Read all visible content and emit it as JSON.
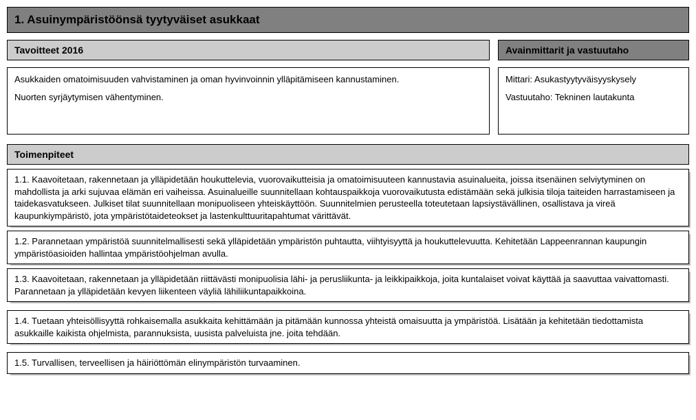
{
  "mainHeader": "1. Asuinympäristöönsä tyytyväiset asukkaat",
  "left": {
    "header": "Tavoitteet 2016",
    "body": [
      "Asukkaiden omatoimisuuden vahvistaminen ja oman hyvinvoinnin ylläpitämiseen kannustaminen.",
      "Nuorten syrjäytymisen vähentyminen."
    ]
  },
  "right": {
    "header": "Avainmittarit ja vastuutaho",
    "body": [
      "Mittari: Asukastyytyväisyyskysely",
      "Vastuutaho: Tekninen lautakunta"
    ]
  },
  "actionsHeader": "Toimenpiteet",
  "actions": [
    "1.1. Kaavoitetaan, rakennetaan ja ylläpidetään houkuttelevia, vuorovaikutteisia ja omatoimisuuteen kannustavia asuinalueita, joissa itsenäinen selviytyminen on mahdollista ja arki sujuvaa elämän eri vaiheissa. Asuinalueille suunnitellaan kohtauspaikkoja vuorovaikutusta edistämään sekä julkisia tiloja taiteiden harrastamiseen ja taidekasvatukseen. Julkiset tilat suunnitellaan monipuoliseen yhteiskäyttöön. Suunnitelmien perusteella toteutetaan lapsiystävällinen, osallistava ja vireä kaupunkiympäristö, jota ympäristötaideteokset ja lastenkulttuuritapahtumat värittävät.",
    "1.2. Parannetaan ympäristöä suunnitelmallisesti sekä ylläpidetään ympäristön puhtautta, viihtyisyyttä ja houkuttelevuutta. Kehitetään Lappeenrannan kaupungin ympäristöasioiden hallintaa ympäristöohjelman avulla.",
    "1.3. Kaavoitetaan, rakennetaan ja ylläpidetään riittävästi monipuolisia lähi- ja perusliikunta- ja leikkipaikkoja, joita kuntalaiset voivat käyttää ja saavuttaa vaivattomasti. Parannetaan ja ylläpidetään kevyen liikenteen väyliä lähiliikuntapaikkoina.",
    "1.4. Tuetaan yhteisöllisyyttä rohkaisemalla asukkaita kehittämään ja pitämään kunnossa yhteistä omaisuutta ja ympäristöä. Lisätään ja kehitetään tiedottamista asukkaille kaikista ohjelmista, parannuksista, uusista palveluista jne. joita tehdään.",
    "1.5. Turvallisen, terveellisen ja häiriöttömän elinympäristön turvaaminen."
  ],
  "colors": {
    "headerDark": "#808080",
    "headerLight": "#cccccc",
    "border": "#000000",
    "shadow": "#bdbdbd",
    "background": "#ffffff"
  }
}
